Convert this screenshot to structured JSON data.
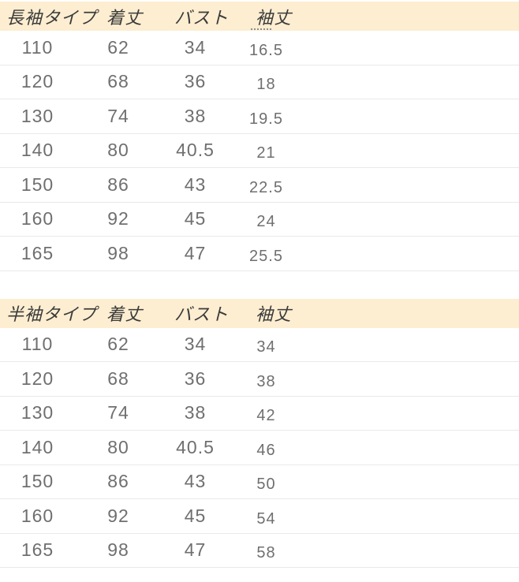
{
  "colors": {
    "header_bg": "#fdeed1",
    "header_text": "#3b3b3b",
    "cell_text": "#6f6f6f",
    "divider": "#e9e9e9",
    "page_bg": "#ffffff"
  },
  "tables": [
    {
      "name": "long-sleeve",
      "headers": [
        "長袖タイプ",
        "着丈",
        "バスト",
        "袖丈"
      ],
      "rows": [
        [
          "110",
          "62",
          "34",
          "16.5"
        ],
        [
          "120",
          "68",
          "36",
          "18"
        ],
        [
          "130",
          "74",
          "38",
          "19.5"
        ],
        [
          "140",
          "80",
          "40.5",
          "21"
        ],
        [
          "150",
          "86",
          "43",
          "22.5"
        ],
        [
          "160",
          "92",
          "45",
          "24"
        ],
        [
          "165",
          "98",
          "47",
          "25.5"
        ]
      ]
    },
    {
      "name": "short-sleeve",
      "headers": [
        "半袖タイプ",
        "着丈",
        "バスト",
        "袖丈"
      ],
      "rows": [
        [
          "110",
          "62",
          "34",
          "34"
        ],
        [
          "120",
          "68",
          "36",
          "38"
        ],
        [
          "130",
          "74",
          "38",
          "42"
        ],
        [
          "140",
          "80",
          "40.5",
          "46"
        ],
        [
          "150",
          "86",
          "43",
          "50"
        ],
        [
          "160",
          "92",
          "45",
          "54"
        ],
        [
          "165",
          "98",
          "47",
          "58"
        ]
      ]
    }
  ]
}
